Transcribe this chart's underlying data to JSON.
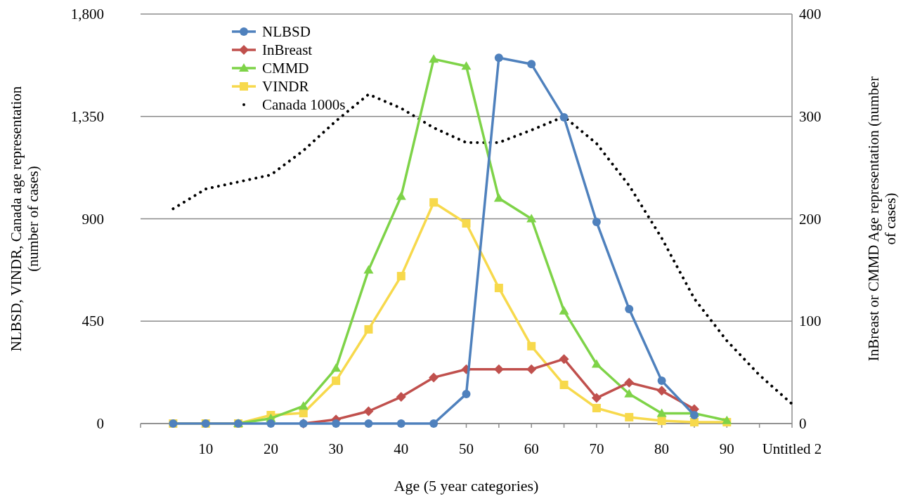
{
  "chart_data": {
    "type": "line",
    "xlabel": "Age (5 year categories)",
    "ylabel": "NLBSD, VINDR, Canada age representation (number of cases)",
    "y2label": "InBreast or CMMD  Age representation (number of cases)",
    "categories": [
      null,
      null,
      "10",
      null,
      "20",
      null,
      "30",
      null,
      "40",
      null,
      "50",
      null,
      "60",
      null,
      "70",
      null,
      "80",
      null,
      "90",
      null,
      "Untitled 2"
    ],
    "ylim": [
      0,
      1800
    ],
    "yticks": [
      {
        "value": 0,
        "label": "0"
      },
      {
        "value": 450,
        "label": "450"
      },
      {
        "value": 900,
        "label": "900"
      },
      {
        "value": 1350,
        "label": "1,350"
      },
      {
        "value": 1800,
        "label": "1,800"
      }
    ],
    "y2lim": [
      0,
      400
    ],
    "y2ticks": [
      0,
      100,
      200,
      300,
      400
    ],
    "grid": "y",
    "legend": "top left",
    "series": [
      {
        "name": "NLBSD",
        "color": "#4f81bd",
        "marker": "circle",
        "line_style": "solid",
        "values": [
          null,
          0,
          0,
          0,
          0,
          0,
          0,
          0,
          0,
          0,
          130,
          1608,
          1580,
          1346,
          886,
          503,
          188,
          37,
          null,
          null,
          null
        ]
      },
      {
        "name": "InBreast",
        "color": "#c0504d",
        "marker": "diamond",
        "line_style": "solid",
        "axis": "y2",
        "values": [
          null,
          null,
          null,
          null,
          null,
          0,
          4,
          12,
          26,
          45,
          53,
          53,
          53,
          63,
          25,
          40,
          32,
          14,
          null,
          null,
          null
        ]
      },
      {
        "name": "CMMD",
        "color": "#7ed348",
        "marker": "triangle",
        "line_style": "solid",
        "axis": "y2",
        "values": [
          null,
          null,
          null,
          0,
          5,
          17,
          54,
          150,
          222,
          356,
          349,
          220,
          200,
          110,
          58,
          29,
          10,
          10,
          3,
          null,
          null
        ]
      },
      {
        "name": "VINDR",
        "color": "#f7d94c",
        "marker": "square",
        "line_style": "solid",
        "values": [
          null,
          0,
          0,
          0,
          37,
          46,
          188,
          414,
          648,
          972,
          880,
          596,
          340,
          170,
          68,
          28,
          12,
          6,
          6,
          null,
          null
        ]
      },
      {
        "name": "Canada 1000s",
        "color": "#000000",
        "marker": "none",
        "line_style": "dotted",
        "values": [
          null,
          944,
          1031,
          1062,
          1093,
          1200,
          1330,
          1447,
          1386,
          1300,
          1235,
          1235,
          1290,
          1349,
          1231,
          1046,
          815,
          549,
          364,
          213,
          86
        ]
      }
    ]
  }
}
